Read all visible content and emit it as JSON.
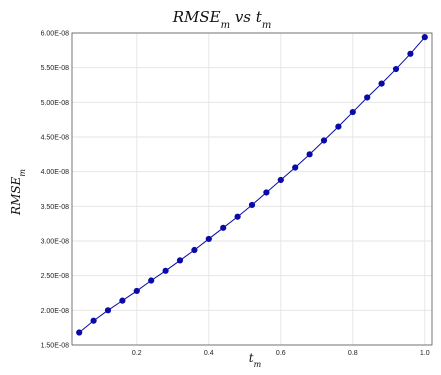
{
  "chart_data": {
    "type": "line",
    "title": "RMSE_m vs t_m",
    "xlabel": "t_m",
    "ylabel": "RMSE_m",
    "xlim": [
      0.02,
      1.02
    ],
    "ylim": [
      1.5e-08,
      6e-08
    ],
    "grid": true,
    "x_ticks": [
      {
        "value": 0.2,
        "label": "0.2"
      },
      {
        "value": 0.4,
        "label": "0.4"
      },
      {
        "value": 0.6,
        "label": "0.6"
      },
      {
        "value": 0.8,
        "label": "0.8"
      },
      {
        "value": 1.0,
        "label": "1.0"
      }
    ],
    "y_ticks": [
      {
        "value": 1.5e-08,
        "label": "1.50E-08"
      },
      {
        "value": 2e-08,
        "label": "2.00E-08"
      },
      {
        "value": 2.5e-08,
        "label": "2.50E-08"
      },
      {
        "value": 3e-08,
        "label": "3.00E-08"
      },
      {
        "value": 3.5e-08,
        "label": "3.50E-08"
      },
      {
        "value": 4e-08,
        "label": "4.00E-08"
      },
      {
        "value": 4.5e-08,
        "label": "4.50E-08"
      },
      {
        "value": 5e-08,
        "label": "5.00E-08"
      },
      {
        "value": 5.5e-08,
        "label": "5.50E-08"
      },
      {
        "value": 6e-08,
        "label": "6.00E-08"
      }
    ],
    "series": [
      {
        "color": "#0a0aa8",
        "x": [
          0.04,
          0.08,
          0.12,
          0.16,
          0.2,
          0.24,
          0.28,
          0.32,
          0.36,
          0.4,
          0.44,
          0.48,
          0.52,
          0.56,
          0.6,
          0.64,
          0.68,
          0.72,
          0.76,
          0.8,
          0.84,
          0.88,
          0.92,
          0.96,
          1.0
        ],
        "y": [
          1.68e-08,
          1.85e-08,
          2e-08,
          2.14e-08,
          2.28e-08,
          2.43e-08,
          2.57e-08,
          2.72e-08,
          2.87e-08,
          3.03e-08,
          3.19e-08,
          3.35e-08,
          3.52e-08,
          3.7e-08,
          3.88e-08,
          4.06e-08,
          4.25e-08,
          4.45e-08,
          4.65e-08,
          4.86e-08,
          5.07e-08,
          5.27e-08,
          5.48e-08,
          5.7e-08,
          5.94e-08
        ]
      }
    ]
  }
}
